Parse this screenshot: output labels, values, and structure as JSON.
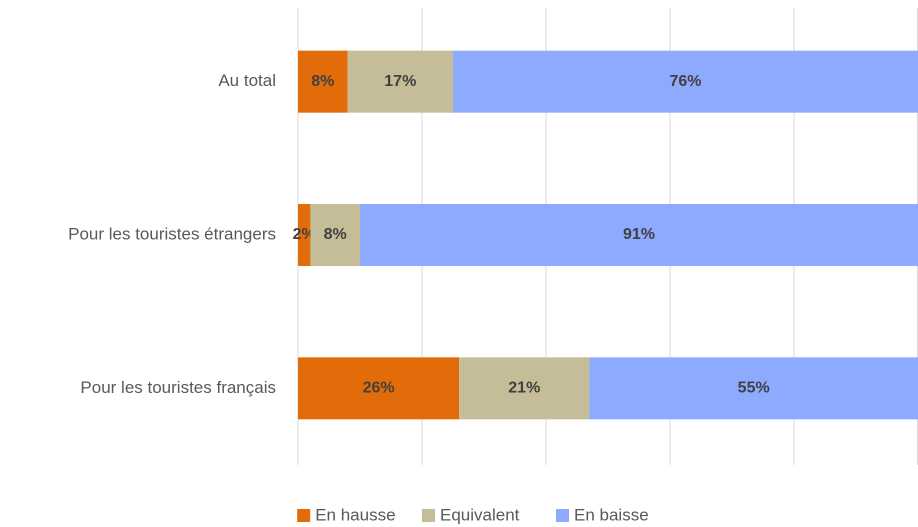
{
  "chart_data": {
    "type": "stacked_barh",
    "categories": [
      "Au total",
      "Pour les touristes étrangers",
      "Pour les touristes français"
    ],
    "series": [
      {
        "name": "En hausse",
        "color": "#e36c0a",
        "values": [
          8,
          2,
          26
        ],
        "value_labels": [
          "8%",
          "2%",
          "26%"
        ]
      },
      {
        "name": "Equivalent",
        "color": "#c4bd97",
        "values": [
          17,
          8,
          21
        ],
        "value_labels": [
          "17%",
          "8%",
          "21%"
        ]
      },
      {
        "name": "En baisse",
        "color": "#8eaafe",
        "values": [
          76,
          91,
          55
        ],
        "value_labels": [
          "76%",
          "91%",
          "55%"
        ]
      }
    ],
    "xlim": [
      0,
      100
    ],
    "xticks": [
      0,
      20,
      40,
      60,
      80,
      100
    ],
    "grid": true,
    "legend": "bottom"
  }
}
